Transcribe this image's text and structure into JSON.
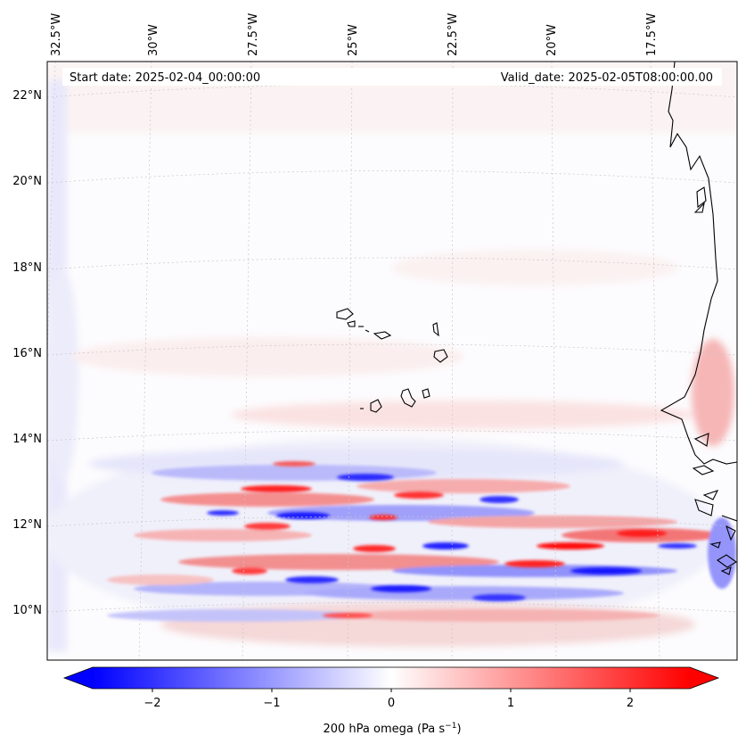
{
  "header": {
    "start_date": "Start date: 2025-02-04_00:00:00",
    "valid_date": "Valid_date: 2025-02-05T08:00:00.00"
  },
  "map": {
    "longitude_labels": [
      "32.5°W",
      "30°W",
      "27.5°W",
      "25°W",
      "22.5°W",
      "20°W",
      "17.5°W"
    ],
    "latitude_labels": [
      "22°N",
      "20°N",
      "18°N",
      "16°N",
      "14°N",
      "12°N",
      "10°N"
    ]
  },
  "colorbar": {
    "ticks": [
      "−2",
      "−1",
      "0",
      "1",
      "2"
    ],
    "label_main": "200 hPa omega (Pa s",
    "label_exp": "−1",
    "label_close": ")",
    "colors": {
      "negative": "#0000ff",
      "zero": "#ffffff",
      "positive": "#ff0000"
    }
  }
}
